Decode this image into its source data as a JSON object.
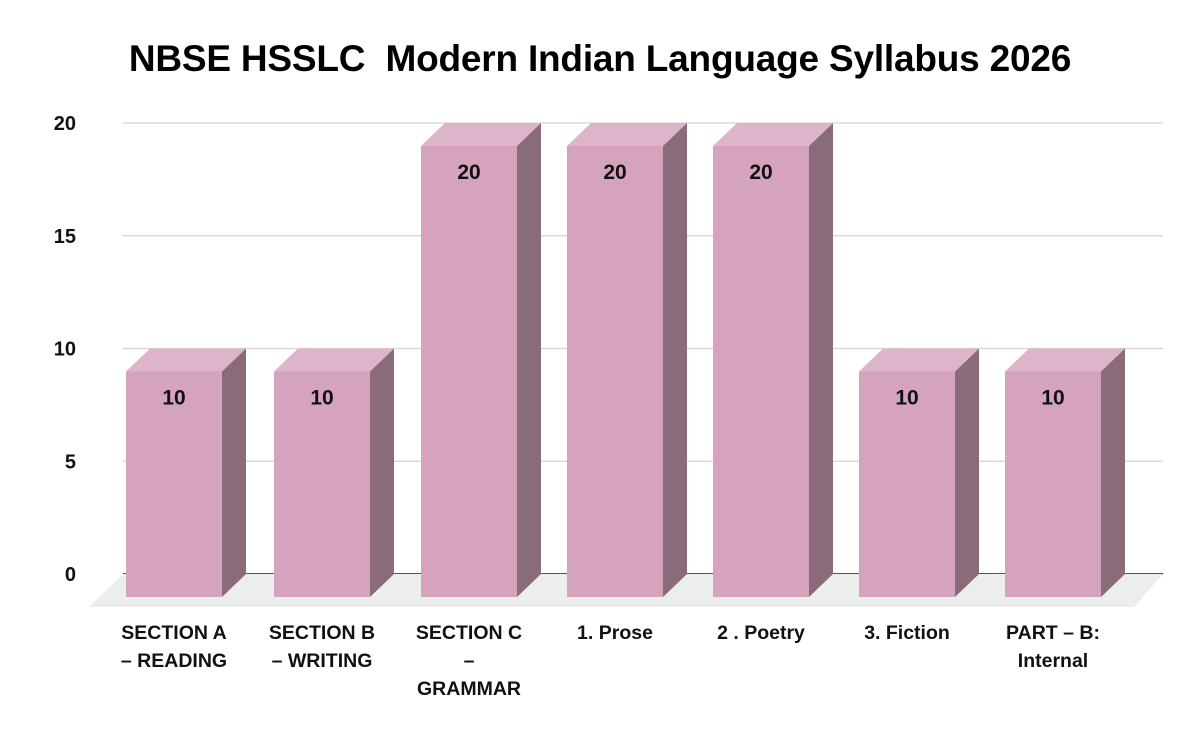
{
  "chart_data": {
    "type": "bar",
    "style": "3d-column",
    "title": "NBSE HSSLC  Modern Indian Language Syllabus 2026",
    "xlabel": "",
    "ylabel": "",
    "categories": [
      "SECTION A – READING",
      "SECTION B – WRITING",
      "SECTION C – GRAMMAR",
      "1. Prose",
      "2 . Poetry",
      "3. Fiction",
      "PART – B: Internal"
    ],
    "category_display": [
      "SECTION A\n– READING",
      "SECTION B\n– WRITING",
      "SECTION C\n–\nGRAMMAR",
      "1. Prose",
      "2 . Poetry",
      "3. Fiction",
      "PART – B:\nInternal"
    ],
    "values": [
      10,
      10,
      20,
      20,
      20,
      10,
      10
    ],
    "data_labels": [
      "10",
      "10",
      "20",
      "20",
      "20",
      "10",
      "10"
    ],
    "ylim": [
      0,
      20
    ],
    "yticks": [
      "0",
      "5",
      "10",
      "15",
      "20"
    ],
    "grid": true,
    "legend": "none",
    "colors": {
      "front": "#D5A3BE",
      "top": "#DDB4C9",
      "side": "#8A6B79",
      "floor": "#ECEEED",
      "grid": "#D3D3D3",
      "baseline": "#555555"
    }
  }
}
